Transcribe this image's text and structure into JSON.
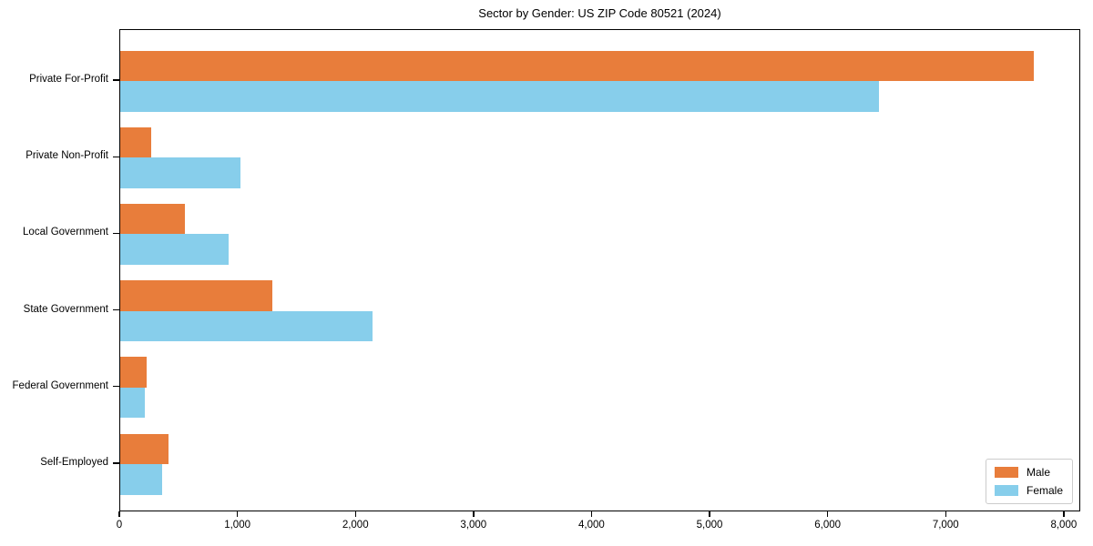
{
  "title": "Sector by Gender: US ZIP Code 80521 (2024)",
  "chart_data": {
    "type": "bar",
    "orientation": "horizontal",
    "title": "Sector by Gender: US ZIP Code 80521 (2024)",
    "categories": [
      "Private For-Profit",
      "Private Non-Profit",
      "Local Government",
      "State Government",
      "Federal Government",
      "Self-Employed"
    ],
    "series": [
      {
        "name": "Male",
        "color": "#E87D3B",
        "values": [
          7740,
          260,
          550,
          1290,
          225,
          410
        ]
      },
      {
        "name": "Female",
        "color": "#87CEEB",
        "values": [
          6430,
          1015,
          915,
          2140,
          205,
          355
        ]
      }
    ],
    "xlabel": "",
    "ylabel": "",
    "xlim": [
      0,
      8140
    ],
    "xticks": [
      0,
      1000,
      2000,
      3000,
      4000,
      5000,
      6000,
      7000,
      8000
    ],
    "xtick_labels": [
      "0",
      "1,000",
      "2,000",
      "3,000",
      "4,000",
      "5,000",
      "6,000",
      "7,000",
      "8,000"
    ],
    "grid": false,
    "legend_position": "lower right",
    "legend_entries": [
      "Male",
      "Female"
    ]
  }
}
